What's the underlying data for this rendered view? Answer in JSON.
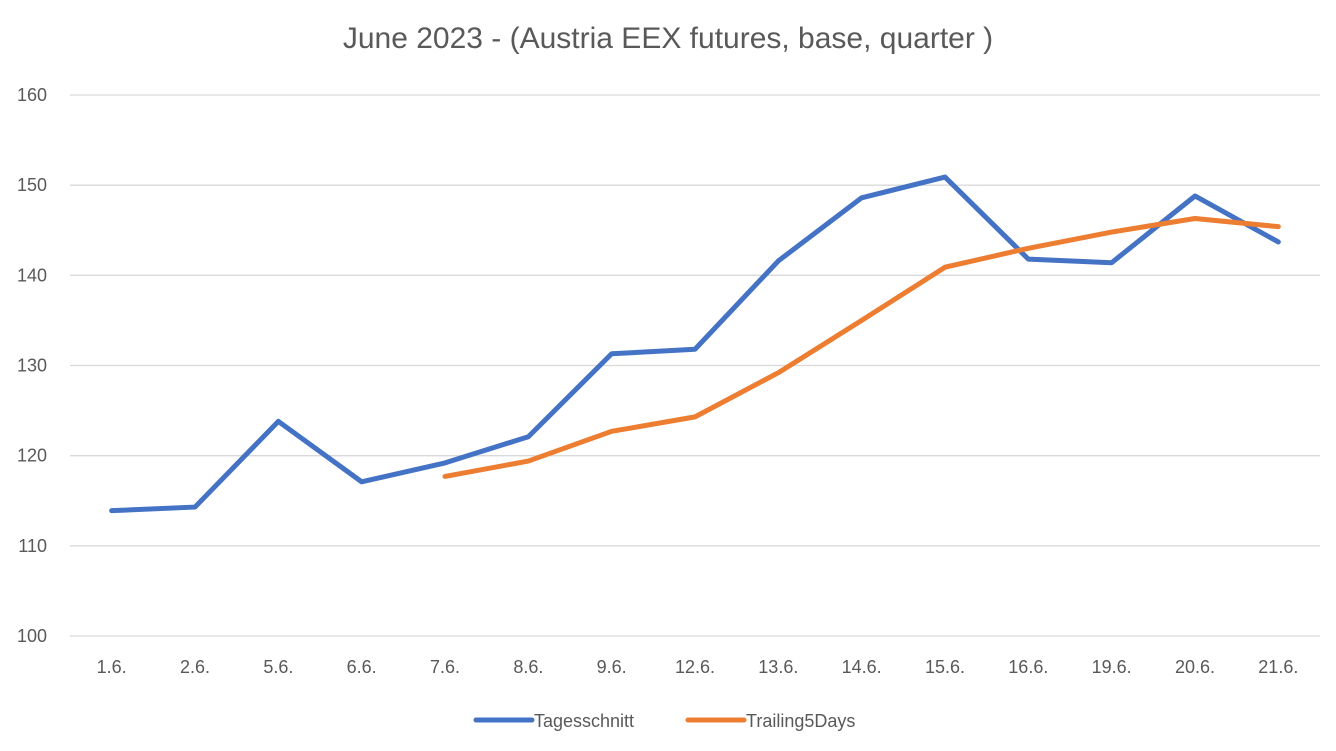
{
  "chart_data": {
    "type": "line",
    "title": "June 2023 - (Austria EEX futures, base, quarter )",
    "categories": [
      "1.6.",
      "2.6.",
      "5.6.",
      "6.6.",
      "7.6.",
      "8.6.",
      "9.6.",
      "12.6.",
      "13.6.",
      "14.6.",
      "15.6.",
      "16.6.",
      "19.6.",
      "20.6.",
      "21.6."
    ],
    "ylim": [
      100,
      160
    ],
    "yticks": [
      100,
      110,
      120,
      130,
      140,
      150,
      160
    ],
    "grid": true,
    "legend_position": "bottom",
    "series": [
      {
        "name": "Tagesschnitt",
        "color": "#4472C4",
        "values": [
          113.9,
          114.3,
          123.8,
          117.1,
          119.2,
          122.1,
          131.3,
          131.8,
          141.6,
          148.6,
          150.9,
          141.8,
          141.4,
          148.8,
          143.7
        ]
      },
      {
        "name": "Trailing5Days",
        "color": "#ED7D31",
        "values": [
          null,
          null,
          null,
          null,
          117.7,
          119.4,
          122.7,
          124.3,
          129.2,
          135.0,
          140.9,
          143.0,
          144.8,
          146.3,
          145.4
        ]
      }
    ]
  }
}
